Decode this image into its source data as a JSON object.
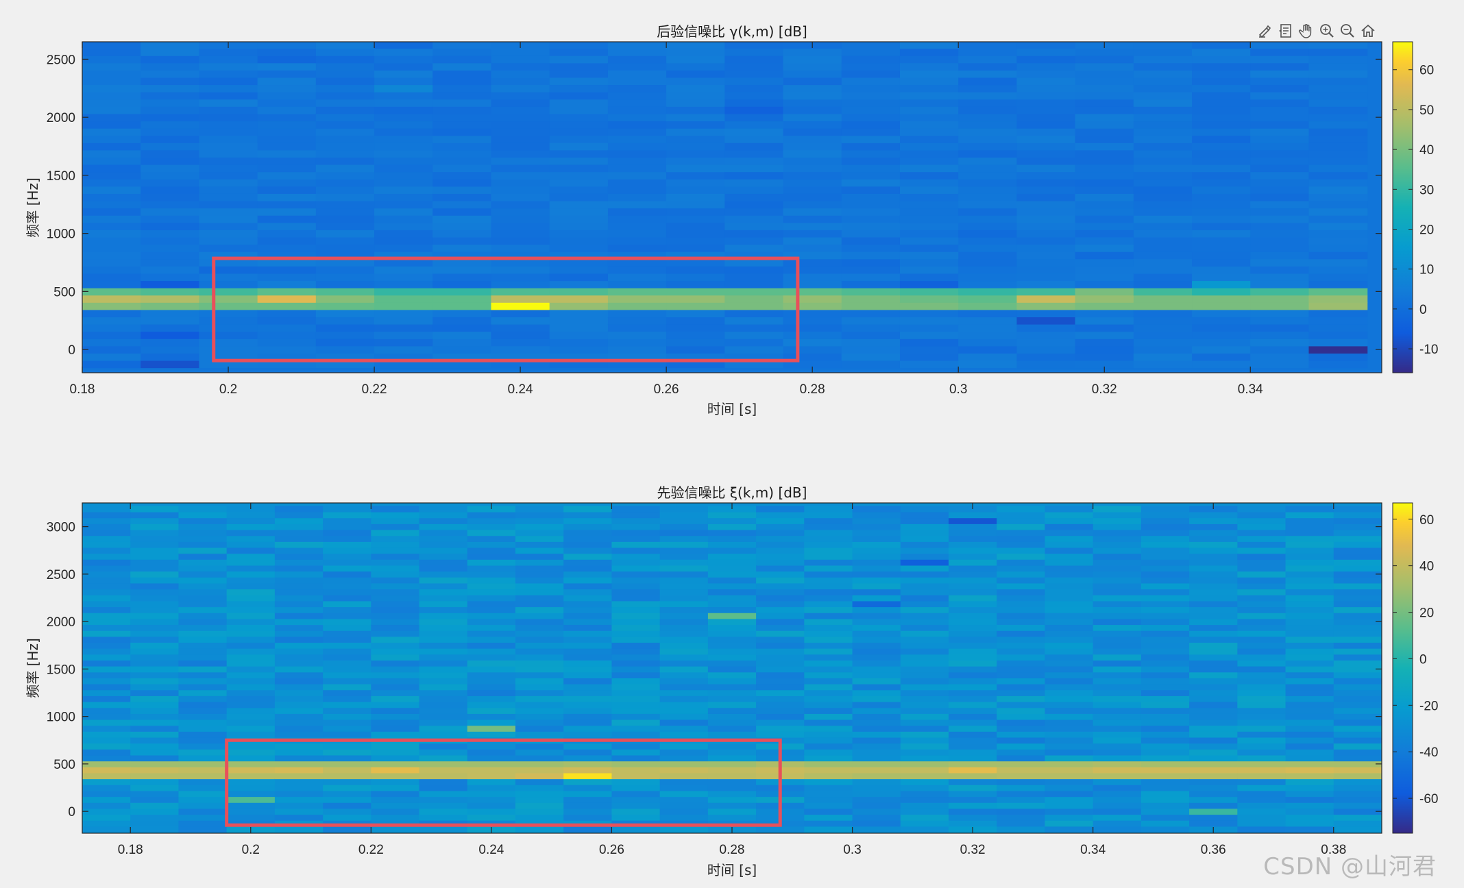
{
  "toolbar": {
    "buttons": [
      {
        "name": "brush-icon"
      },
      {
        "name": "datatip-icon"
      },
      {
        "name": "pan-hand-icon"
      },
      {
        "name": "zoom-in-icon"
      },
      {
        "name": "zoom-out-icon"
      },
      {
        "name": "home-icon"
      }
    ]
  },
  "watermark": "CSDN @山河君",
  "chart_data": [
    {
      "type": "heatmap",
      "title": "后验信噪比 γ(k,m) [dB]",
      "xlabel": "时间 [s]",
      "ylabel": "频率 [Hz]",
      "xlim": [
        0.18,
        0.358
      ],
      "ylim": [
        -200,
        2650
      ],
      "xticks": [
        0.18,
        0.2,
        0.22,
        0.24,
        0.26,
        0.28,
        0.3,
        0.32,
        0.34
      ],
      "xtick_labels": [
        "0.18",
        "0.2",
        "0.22",
        "0.24",
        "0.26",
        "0.28",
        "0.3",
        "0.32",
        "0.34"
      ],
      "yticks": [
        0,
        500,
        1000,
        1500,
        2000,
        2500
      ],
      "ytick_labels": [
        "0",
        "500",
        "1000",
        "1500",
        "2000",
        "2500"
      ],
      "colorbar": {
        "range": [
          -16,
          67
        ],
        "ticks": [
          -10,
          0,
          10,
          20,
          30,
          40,
          50,
          60
        ],
        "tick_labels": [
          "-10",
          "0",
          "10",
          "20",
          "30",
          "40",
          "50",
          "60"
        ]
      },
      "colormap": "parula",
      "grid": false,
      "frame_times": [
        0.184,
        0.192,
        0.2,
        0.208,
        0.216,
        0.224,
        0.232,
        0.24,
        0.248,
        0.256,
        0.264,
        0.272,
        0.28,
        0.288,
        0.296,
        0.304,
        0.312,
        0.32,
        0.328,
        0.336,
        0.344,
        0.352
      ],
      "bin_freqs": [
        -125,
        -62.5,
        0,
        62.5,
        125,
        187.5,
        250,
        312.5,
        375,
        437.5,
        500,
        562.5,
        625,
        687.5,
        750,
        812.5,
        875,
        937.5,
        1000,
        1062.5,
        1125,
        1187.5,
        1250,
        1312.5,
        1375,
        1437.5,
        1500,
        1562.5,
        1625,
        1687.5,
        1750,
        1812.5,
        1875,
        1937.5,
        2000,
        2062.5,
        2125,
        2187.5,
        2250,
        2312.5,
        2375,
        2437.5,
        2500,
        2562.5,
        2625
      ],
      "background_db": 2,
      "band_values": [
        {
          "freq": 375,
          "values": [
            42,
            40,
            38,
            38,
            37,
            36,
            36,
            67,
            44,
            40,
            40,
            40,
            42,
            40,
            40,
            38,
            42,
            40,
            40,
            40,
            40,
            45
          ]
        },
        {
          "freq": 437.5,
          "values": [
            50,
            48,
            42,
            56,
            42,
            36,
            36,
            50,
            50,
            44,
            44,
            40,
            44,
            40,
            38,
            36,
            52,
            44,
            40,
            40,
            40,
            44
          ]
        },
        {
          "freq": 500,
          "values": [
            36,
            34,
            32,
            36,
            34,
            30,
            30,
            34,
            34,
            36,
            36,
            36,
            36,
            34,
            32,
            30,
            32,
            40,
            32,
            28,
            32,
            36
          ]
        }
      ],
      "notable_cells": [
        {
          "t": 0.192,
          "f": 562.5,
          "value": -6
        },
        {
          "t": 0.192,
          "f": 125,
          "value": -6
        },
        {
          "t": 0.192,
          "f": -125,
          "value": -8
        },
        {
          "t": 0.208,
          "f": 2500,
          "value": -2
        },
        {
          "t": 0.224,
          "f": 2250,
          "value": 8
        },
        {
          "t": 0.272,
          "f": 2062.5,
          "value": -4
        },
        {
          "t": 0.296,
          "f": 562.5,
          "value": -4
        },
        {
          "t": 0.312,
          "f": 250,
          "value": -8
        },
        {
          "t": 0.336,
          "f": 562.5,
          "value": 14
        },
        {
          "t": 0.352,
          "f": 0,
          "value": -15
        }
      ],
      "highlight_box": {
        "x": [
          0.198,
          0.278
        ],
        "y": [
          -95,
          785
        ],
        "color": "#e8505a"
      }
    },
    {
      "type": "heatmap",
      "title": "先验信噪比 ξ(k,m) [dB]",
      "xlabel": "时间 [s]",
      "ylabel": "频率 [Hz]",
      "xlim": [
        0.172,
        0.388
      ],
      "ylim": [
        -230,
        3250
      ],
      "xticks": [
        0.18,
        0.2,
        0.22,
        0.24,
        0.26,
        0.28,
        0.3,
        0.32,
        0.34,
        0.36,
        0.38
      ],
      "xtick_labels": [
        "0.18",
        "0.2",
        "0.22",
        "0.24",
        "0.26",
        "0.28",
        "0.3",
        "0.32",
        "0.34",
        "0.36",
        "0.38"
      ],
      "yticks": [
        0,
        500,
        1000,
        1500,
        2000,
        2500,
        3000
      ],
      "ytick_labels": [
        "0",
        "500",
        "1000",
        "1500",
        "2000",
        "2500",
        "3000"
      ],
      "colorbar": {
        "range": [
          -75,
          67
        ],
        "ticks": [
          -60,
          -40,
          -20,
          0,
          20,
          40,
          60
        ],
        "tick_labels": [
          "-60",
          "-40",
          "-20",
          "0",
          "20",
          "40",
          "60"
        ]
      },
      "colormap": "parula",
      "grid": false,
      "frame_times": [
        0.176,
        0.184,
        0.192,
        0.2,
        0.208,
        0.216,
        0.224,
        0.232,
        0.24,
        0.248,
        0.256,
        0.264,
        0.272,
        0.28,
        0.288,
        0.296,
        0.304,
        0.312,
        0.32,
        0.328,
        0.336,
        0.344,
        0.352,
        0.36,
        0.368,
        0.376,
        0.384
      ],
      "bin_freqs": [
        -187.5,
        -125,
        -62.5,
        0,
        62.5,
        125,
        187.5,
        250,
        312.5,
        375,
        437.5,
        500,
        562.5,
        625,
        687.5,
        750,
        812.5,
        875,
        937.5,
        1000,
        1062.5,
        1125,
        1187.5,
        1250,
        1312.5,
        1375,
        1437.5,
        1500,
        1562.5,
        1625,
        1687.5,
        1750,
        1812.5,
        1875,
        1937.5,
        2000,
        2062.5,
        2125,
        2187.5,
        2250,
        2312.5,
        2375,
        2437.5,
        2500,
        2562.5,
        2625,
        2687.5,
        2750,
        2812.5,
        2875,
        2937.5,
        3000,
        3062.5,
        3125,
        3187.5
      ],
      "background_db": -28,
      "band_values": [
        {
          "freq": 375,
          "values": [
            38,
            36,
            36,
            36,
            36,
            36,
            36,
            38,
            40,
            44,
            62,
            40,
            38,
            38,
            40,
            36,
            34,
            34,
            34,
            36,
            36,
            36,
            36,
            36,
            36,
            36,
            34
          ]
        },
        {
          "freq": 437.5,
          "values": [
            44,
            42,
            40,
            44,
            46,
            40,
            50,
            40,
            40,
            40,
            44,
            40,
            42,
            40,
            42,
            40,
            40,
            40,
            50,
            40,
            40,
            44,
            44,
            44,
            44,
            46,
            44
          ]
        },
        {
          "freq": 500,
          "values": [
            30,
            30,
            30,
            30,
            30,
            30,
            30,
            30,
            30,
            30,
            32,
            30,
            30,
            30,
            34,
            30,
            30,
            30,
            32,
            32,
            32,
            34,
            32,
            32,
            32,
            32,
            32
          ]
        }
      ],
      "notable_cells": [
        {
          "t": 0.2,
          "f": 125,
          "value": 10
        },
        {
          "t": 0.24,
          "f": 875,
          "value": 20
        },
        {
          "t": 0.28,
          "f": 2062.5,
          "value": 14
        },
        {
          "t": 0.32,
          "f": 3062.5,
          "value": -60
        },
        {
          "t": 0.312,
          "f": 2625,
          "value": -55
        },
        {
          "t": 0.304,
          "f": 2187.5,
          "value": -50
        },
        {
          "t": 0.36,
          "f": 0,
          "value": 5
        }
      ],
      "highlight_box": {
        "x": [
          0.196,
          0.288
        ],
        "y": [
          -145,
          750
        ],
        "color": "#e8505a"
      }
    }
  ]
}
